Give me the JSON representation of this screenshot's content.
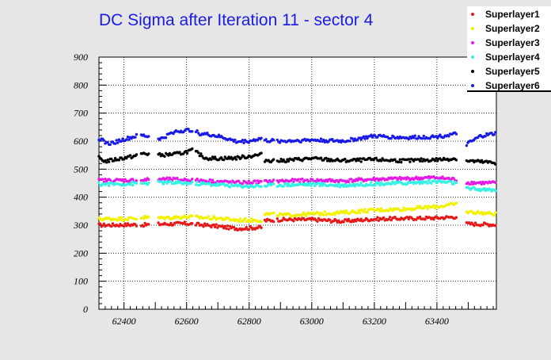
{
  "chart_data": {
    "type": "scatter",
    "title": "DC Sigma after Iteration 11 - sector 4",
    "xlabel": "",
    "ylabel": "",
    "xlim": [
      62320,
      63590
    ],
    "ylim": [
      0,
      900
    ],
    "x_ticks": [
      62400,
      62600,
      62800,
      63000,
      63200,
      63400
    ],
    "y_ticks": [
      0,
      100,
      200,
      300,
      400,
      500,
      600,
      700,
      800,
      900
    ],
    "grid": true,
    "legend_position": "top-right",
    "x_segments": [
      [
        62320,
        62440
      ],
      [
        62455,
        62480
      ],
      [
        62510,
        62620
      ],
      [
        62630,
        62670
      ],
      [
        62675,
        62840
      ],
      [
        62850,
        62880
      ],
      [
        62890,
        63465
      ],
      [
        63495,
        63590
      ]
    ],
    "x_step": 4,
    "series": [
      {
        "name": "Superlayer1",
        "color": "#e61919",
        "profile": [
          [
            62320,
            300
          ],
          [
            62440,
            302
          ],
          [
            62460,
            301
          ],
          [
            62520,
            304
          ],
          [
            62600,
            306
          ],
          [
            62700,
            296
          ],
          [
            62760,
            288
          ],
          [
            62840,
            292
          ],
          [
            62850,
            316
          ],
          [
            62900,
            320
          ],
          [
            63000,
            320
          ],
          [
            63100,
            314
          ],
          [
            63200,
            322
          ],
          [
            63300,
            324
          ],
          [
            63400,
            326
          ],
          [
            63465,
            330
          ],
          [
            63495,
            305
          ],
          [
            63590,
            302
          ]
        ]
      },
      {
        "name": "Superlayer2",
        "color": "#f2f200",
        "profile": [
          [
            62320,
            322
          ],
          [
            62440,
            324
          ],
          [
            62460,
            328
          ],
          [
            62520,
            326
          ],
          [
            62600,
            330
          ],
          [
            62700,
            325
          ],
          [
            62760,
            318
          ],
          [
            62840,
            318
          ],
          [
            62850,
            340
          ],
          [
            62920,
            336
          ],
          [
            63000,
            340
          ],
          [
            63100,
            345
          ],
          [
            63200,
            354
          ],
          [
            63300,
            358
          ],
          [
            63400,
            366
          ],
          [
            63465,
            376
          ],
          [
            63495,
            348
          ],
          [
            63590,
            340
          ]
        ]
      },
      {
        "name": "Superlayer3",
        "color": "#e619e6",
        "profile": [
          [
            62320,
            460
          ],
          [
            62440,
            460
          ],
          [
            62520,
            464
          ],
          [
            62600,
            462
          ],
          [
            62700,
            456
          ],
          [
            62760,
            452
          ],
          [
            62840,
            454
          ],
          [
            62900,
            458
          ],
          [
            63000,
            460
          ],
          [
            63100,
            458
          ],
          [
            63200,
            464
          ],
          [
            63300,
            466
          ],
          [
            63400,
            470
          ],
          [
            63465,
            462
          ],
          [
            63495,
            452
          ],
          [
            63590,
            450
          ]
        ]
      },
      {
        "name": "Superlayer4",
        "color": "#33f2e6",
        "profile": [
          [
            62320,
            446
          ],
          [
            62440,
            448
          ],
          [
            62520,
            452
          ],
          [
            62600,
            450
          ],
          [
            62700,
            445
          ],
          [
            62760,
            440
          ],
          [
            62840,
            440
          ],
          [
            62900,
            444
          ],
          [
            63000,
            446
          ],
          [
            63100,
            442
          ],
          [
            63200,
            448
          ],
          [
            63300,
            450
          ],
          [
            63400,
            456
          ],
          [
            63465,
            450
          ],
          [
            63495,
            430
          ],
          [
            63590,
            424
          ]
        ]
      },
      {
        "name": "Superlayer5",
        "color": "#000000",
        "profile": [
          [
            62320,
            540
          ],
          [
            62340,
            528
          ],
          [
            62440,
            548
          ],
          [
            62460,
            556
          ],
          [
            62520,
            550
          ],
          [
            62580,
            556
          ],
          [
            62620,
            568
          ],
          [
            62640,
            554
          ],
          [
            62660,
            540
          ],
          [
            62700,
            538
          ],
          [
            62760,
            540
          ],
          [
            62840,
            552
          ],
          [
            62850,
            532
          ],
          [
            62900,
            530
          ],
          [
            63000,
            538
          ],
          [
            63100,
            530
          ],
          [
            63200,
            534
          ],
          [
            63300,
            530
          ],
          [
            63400,
            534
          ],
          [
            63465,
            538
          ],
          [
            63495,
            530
          ],
          [
            63590,
            522
          ]
        ]
      },
      {
        "name": "Superlayer6",
        "color": "#1a1ae6",
        "profile": [
          [
            62320,
            610
          ],
          [
            62350,
            590
          ],
          [
            62440,
            618
          ],
          [
            62460,
            620
          ],
          [
            62520,
            608
          ],
          [
            62560,
            634
          ],
          [
            62620,
            640
          ],
          [
            62640,
            628
          ],
          [
            62680,
            622
          ],
          [
            62720,
            612
          ],
          [
            62760,
            598
          ],
          [
            62800,
            600
          ],
          [
            62840,
            610
          ],
          [
            62850,
            602
          ],
          [
            62900,
            600
          ],
          [
            63000,
            604
          ],
          [
            63100,
            600
          ],
          [
            63200,
            618
          ],
          [
            63300,
            612
          ],
          [
            63400,
            616
          ],
          [
            63465,
            626
          ],
          [
            63495,
            588
          ],
          [
            63540,
            618
          ],
          [
            63590,
            628
          ]
        ]
      }
    ]
  }
}
